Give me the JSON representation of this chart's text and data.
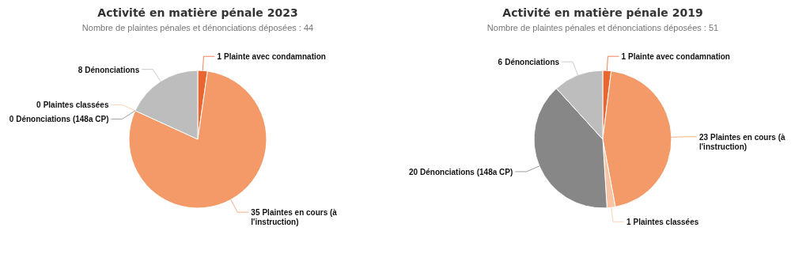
{
  "chart_data": [
    {
      "type": "pie",
      "title": "Activité en matière pénale 2023",
      "subtitle": "Nombre de plaintes pénales et dénonciations déposées : 44",
      "categories": [
        "Plainte avec condamnation",
        "Plaintes en cours (à l'instruction)",
        "Plaintes classées",
        "Dénonciations (148a CP)",
        "Dénonciations"
      ],
      "values": [
        1,
        35,
        0,
        0,
        8
      ],
      "colors": [
        "#eb6530",
        "#f39a68",
        "#f8c4a4",
        "#878787",
        "#bdbdbd"
      ],
      "value_labels": [
        "1",
        "35",
        "0",
        "0",
        "8"
      ]
    },
    {
      "type": "pie",
      "title": "Activité en matière pénale 2019",
      "subtitle": "Nombre de plaintes pénales et dénonciations déposées : 51",
      "categories": [
        "Plainte avec condamnation",
        "Plaintes en cours (à l'instruction)",
        "Plaintes classées",
        "Dénonciations (148a CP)",
        "Dénonciations"
      ],
      "values": [
        1,
        23,
        1,
        20,
        6
      ],
      "colors": [
        "#eb6530",
        "#f39a68",
        "#f8c4a4",
        "#878787",
        "#bdbdbd"
      ],
      "value_labels": [
        "1",
        "23",
        "1",
        "20",
        "6"
      ]
    }
  ]
}
